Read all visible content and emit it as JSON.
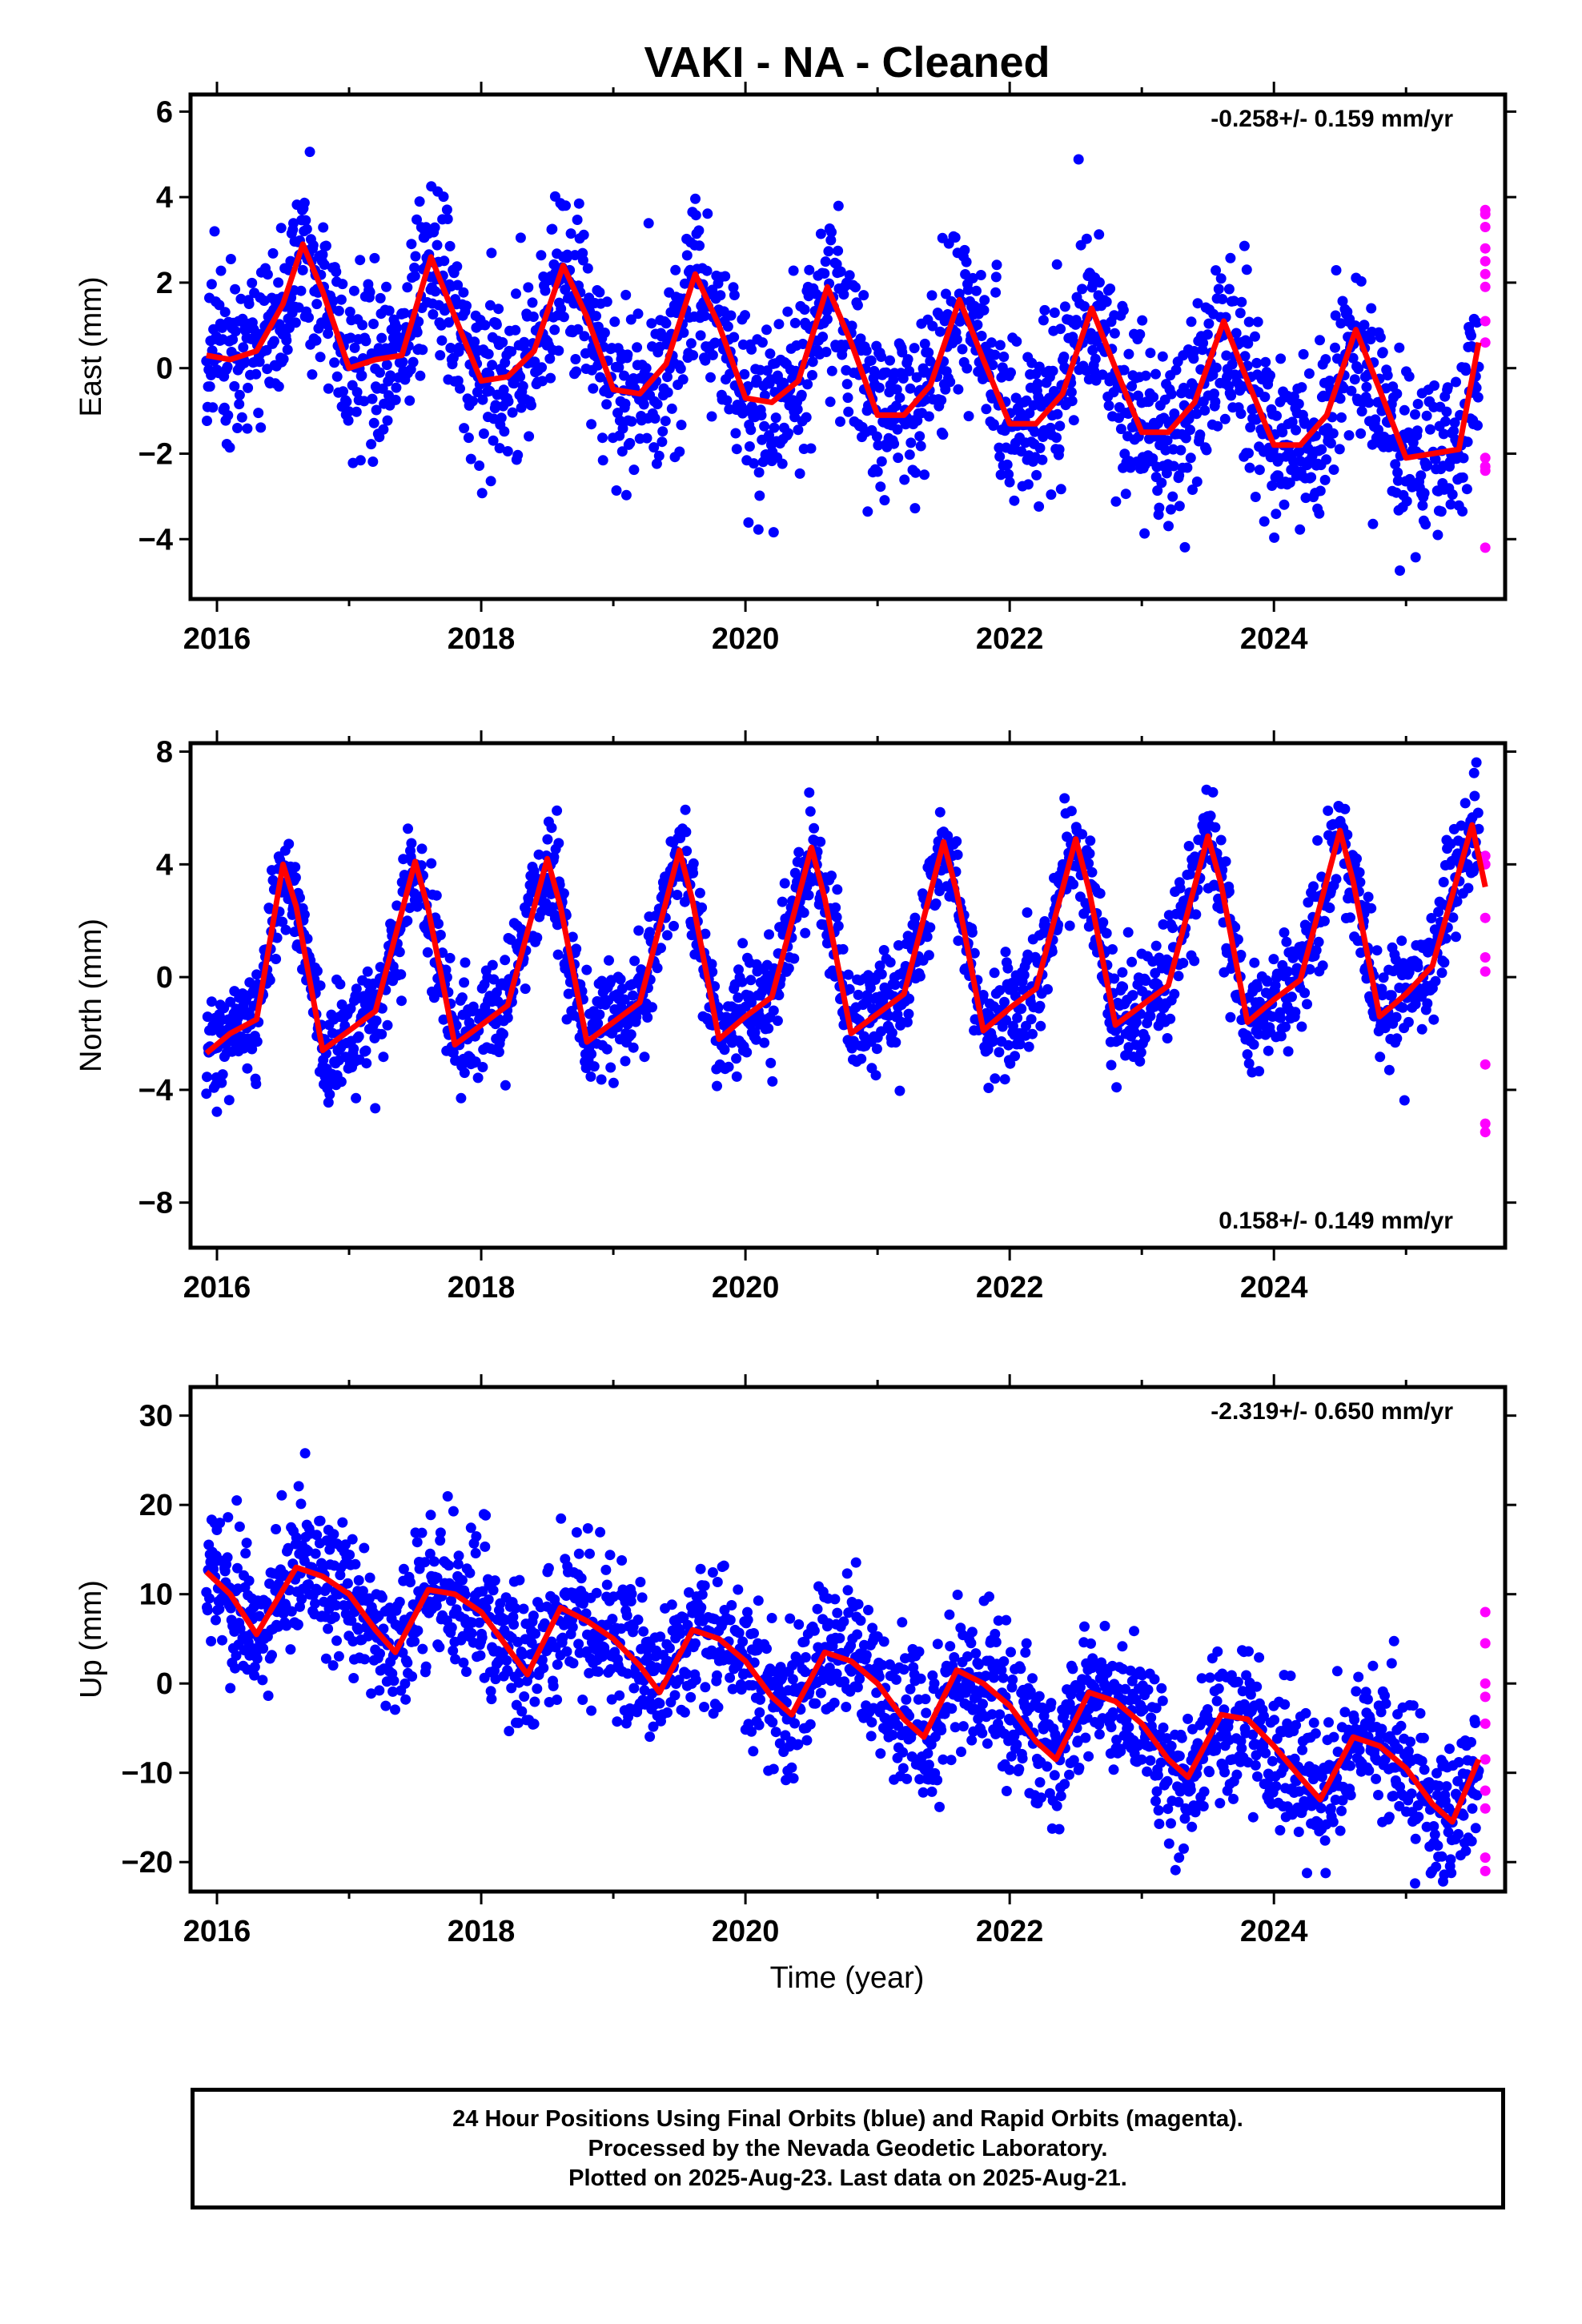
{
  "chart_data": {
    "title": "VAKI  - NA - Cleaned",
    "type": "scatter",
    "xlabel": "Time (year)",
    "xlim": [
      2015.8,
      2025.75
    ],
    "xticks": [
      2016,
      2018,
      2020,
      2022,
      2024
    ],
    "xtick_labels": [
      "2016",
      "2018",
      "2020",
      "2022",
      "2024"
    ],
    "colors": {
      "final": "#0000ff",
      "rapid": "#ff00ff",
      "model": "#ff0000"
    },
    "panels": [
      {
        "name": "east",
        "ylabel": "East (mm)",
        "ylim": [
          -5.4,
          6.4
        ],
        "yticks": [
          -4,
          -2,
          0,
          2,
          4,
          6
        ],
        "ytick_labels": [
          "−4",
          "−2",
          "0",
          "2",
          "4",
          "6"
        ],
        "rate_text": "-0.258+/- 0.159 mm/yr",
        "rate_position": "top-right",
        "final_orbits": {
          "start": 2015.92,
          "end": 2025.55,
          "trend": -0.258,
          "seasonal_amp": 1.6,
          "noise_sd": 1.0,
          "offset": 0.5
        },
        "rapid_orbits": {
          "x": 2025.6,
          "y": [
            3.7,
            3.6,
            3.3,
            2.8,
            2.5,
            2.2,
            1.9,
            1.1,
            0.6,
            -2.1,
            -2.3,
            -2.4,
            -4.2
          ]
        },
        "model": {
          "x": [
            2015.92,
            2016.1,
            2016.3,
            2016.5,
            2016.65,
            2016.8,
            2017.0,
            2017.2,
            2017.4,
            2017.62,
            2017.8,
            2018.0,
            2018.2,
            2018.4,
            2018.62,
            2018.8,
            2019.0,
            2019.2,
            2019.4,
            2019.62,
            2019.8,
            2020.0,
            2020.2,
            2020.4,
            2020.62,
            2020.8,
            2021.0,
            2021.2,
            2021.4,
            2021.62,
            2021.8,
            2022.0,
            2022.2,
            2022.4,
            2022.62,
            2022.8,
            2023.0,
            2023.2,
            2023.4,
            2023.62,
            2023.8,
            2024.0,
            2024.2,
            2024.4,
            2024.62,
            2024.8,
            2025.0,
            2025.2,
            2025.4,
            2025.55
          ],
          "y": [
            0.3,
            0.2,
            0.4,
            1.5,
            2.9,
            1.8,
            0.0,
            0.2,
            0.3,
            2.6,
            1.2,
            -0.3,
            -0.2,
            0.4,
            2.4,
            1.2,
            -0.5,
            -0.6,
            0.1,
            2.2,
            1.0,
            -0.7,
            -0.8,
            -0.3,
            1.9,
            0.6,
            -1.1,
            -1.1,
            -0.4,
            1.6,
            0.2,
            -1.3,
            -1.3,
            -0.6,
            1.4,
            0.0,
            -1.5,
            -1.5,
            -0.8,
            1.1,
            -0.3,
            -1.8,
            -1.8,
            -1.1,
            0.9,
            -0.5,
            -2.1,
            -2.0,
            -1.9,
            0.6
          ]
        }
      },
      {
        "name": "north",
        "ylabel": "North (mm)",
        "ylim": [
          -9.6,
          8.3
        ],
        "yticks": [
          -8,
          -4,
          0,
          4,
          8
        ],
        "ytick_labels": [
          "−8",
          "−4",
          "0",
          "4",
          "8"
        ],
        "rate_text": "0.158+/- 0.149 mm/yr",
        "rate_position": "bottom-right",
        "final_orbits": {
          "start": 2015.92,
          "end": 2025.55,
          "trend": 0.158,
          "seasonal_amp": 2.9,
          "noise_sd": 1.0,
          "offset": 0.7
        },
        "rapid_orbits": {
          "x": 2025.6,
          "y": [
            4.3,
            4.0,
            2.1,
            0.7,
            0.2,
            -3.1,
            -5.2,
            -5.5
          ]
        },
        "model": {
          "x": [
            2015.92,
            2016.1,
            2016.3,
            2016.5,
            2016.6,
            2016.8,
            2017.0,
            2017.2,
            2017.5,
            2017.6,
            2017.8,
            2018.0,
            2018.2,
            2018.5,
            2018.6,
            2018.8,
            2019.0,
            2019.2,
            2019.5,
            2019.6,
            2019.8,
            2020.0,
            2020.2,
            2020.5,
            2020.6,
            2020.8,
            2021.0,
            2021.2,
            2021.5,
            2021.6,
            2021.8,
            2022.0,
            2022.2,
            2022.5,
            2022.6,
            2022.8,
            2023.0,
            2023.2,
            2023.5,
            2023.6,
            2023.8,
            2024.0,
            2024.2,
            2024.5,
            2024.6,
            2024.8,
            2025.0,
            2025.2,
            2025.5,
            2025.6
          ],
          "y": [
            -2.7,
            -2.0,
            -1.5,
            4.0,
            2.5,
            -2.6,
            -1.9,
            -1.2,
            4.1,
            2.4,
            -2.4,
            -1.7,
            -1.0,
            4.2,
            2.5,
            -2.3,
            -1.6,
            -0.9,
            4.5,
            2.7,
            -2.2,
            -1.4,
            -0.7,
            4.6,
            2.8,
            -2.0,
            -1.3,
            -0.6,
            4.8,
            3.0,
            -1.9,
            -1.1,
            -0.4,
            4.9,
            3.1,
            -1.7,
            -1.0,
            -0.3,
            5.0,
            3.3,
            -1.6,
            -0.8,
            -0.1,
            5.2,
            3.4,
            -1.4,
            -0.6,
            0.4,
            5.4,
            3.2
          ]
        }
      },
      {
        "name": "up",
        "ylabel": "Up (mm)",
        "ylim": [
          -23.3,
          33.2
        ],
        "yticks": [
          -20,
          -10,
          0,
          10,
          20,
          30
        ],
        "ytick_labels": [
          "−20",
          "−10",
          "0",
          "10",
          "20",
          "30"
        ],
        "rate_text": "-2.319+/- 0.650 mm/yr",
        "rate_position": "top-right",
        "final_orbits": {
          "start": 2015.92,
          "end": 2025.55,
          "trend": -2.319,
          "seasonal_amp": 3.5,
          "noise_sd": 4.0,
          "offset": 9.5
        },
        "rapid_orbits": {
          "x": 2025.6,
          "y": [
            8.0,
            4.5,
            0.0,
            -1.5,
            -4.5,
            -8.5,
            -12.0,
            -14.0,
            -19.5,
            -21.0
          ]
        },
        "model": {
          "x": [
            2015.92,
            2016.1,
            2016.3,
            2016.6,
            2016.8,
            2017.0,
            2017.2,
            2017.35,
            2017.6,
            2017.8,
            2018.0,
            2018.2,
            2018.35,
            2018.6,
            2018.8,
            2019.0,
            2019.2,
            2019.35,
            2019.6,
            2019.8,
            2020.0,
            2020.2,
            2020.35,
            2020.6,
            2020.8,
            2021.0,
            2021.2,
            2021.35,
            2021.6,
            2021.8,
            2022.0,
            2022.2,
            2022.35,
            2022.6,
            2022.8,
            2023.0,
            2023.2,
            2023.35,
            2023.6,
            2023.8,
            2024.0,
            2024.2,
            2024.35,
            2024.6,
            2024.8,
            2025.0,
            2025.2,
            2025.35,
            2025.55
          ],
          "y": [
            12.5,
            10.0,
            5.5,
            13.0,
            12.0,
            10.0,
            6.0,
            3.5,
            10.5,
            10.0,
            8.0,
            4.0,
            1.0,
            8.5,
            7.0,
            5.0,
            2.0,
            -1.0,
            6.0,
            5.0,
            2.5,
            -1.5,
            -3.5,
            3.5,
            2.5,
            0.0,
            -4.0,
            -6.0,
            1.5,
            0.0,
            -2.5,
            -6.5,
            -8.5,
            -1.0,
            -2.0,
            -4.5,
            -8.5,
            -10.5,
            -3.5,
            -4.0,
            -7.0,
            -10.5,
            -13.0,
            -6.0,
            -7.0,
            -9.5,
            -13.5,
            -15.5,
            -8.5
          ]
        }
      }
    ],
    "footer_lines": [
      "24 Hour Positions Using Final Orbits (blue) and Rapid Orbits (magenta).",
      "Processed by the Nevada Geodetic Laboratory.",
      "Plotted on 2025-Aug-23. Last data on 2025-Aug-21."
    ]
  }
}
